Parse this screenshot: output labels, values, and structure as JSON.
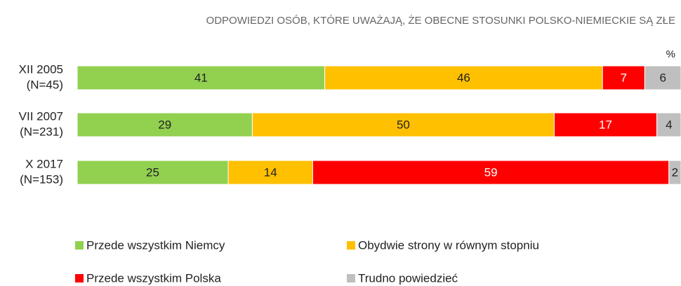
{
  "chart_data": {
    "type": "stacked_bar_horizontal",
    "title": "ODPOWIEDZI OSÓB, KTÓRE UWAŻAJĄ, ŻE OBECNE STOSUNKI POLSKO-NIEMIECKIE SĄ ZŁE",
    "unit": "%",
    "categories": [
      "XII 2005",
      "VII 2007",
      "X 2017"
    ],
    "category_notes": [
      "(N=45)",
      "(N=231)",
      "(N=153)"
    ],
    "xlim": [
      0,
      100
    ],
    "series": [
      {
        "name": "Przede wszystkim Niemcy",
        "color": "#92d050",
        "values": [
          41,
          29,
          25
        ]
      },
      {
        "name": "Obydwie strony w równym stopniu",
        "color": "#ffc000",
        "values": [
          46,
          50,
          14
        ]
      },
      {
        "name": "Przede wszystkim Polska",
        "color": "#ff0000",
        "values": [
          7,
          17,
          59
        ]
      },
      {
        "name": "Trudno powiedzieć",
        "color": "#bfbfbf",
        "values": [
          6,
          4,
          2
        ]
      }
    ]
  }
}
